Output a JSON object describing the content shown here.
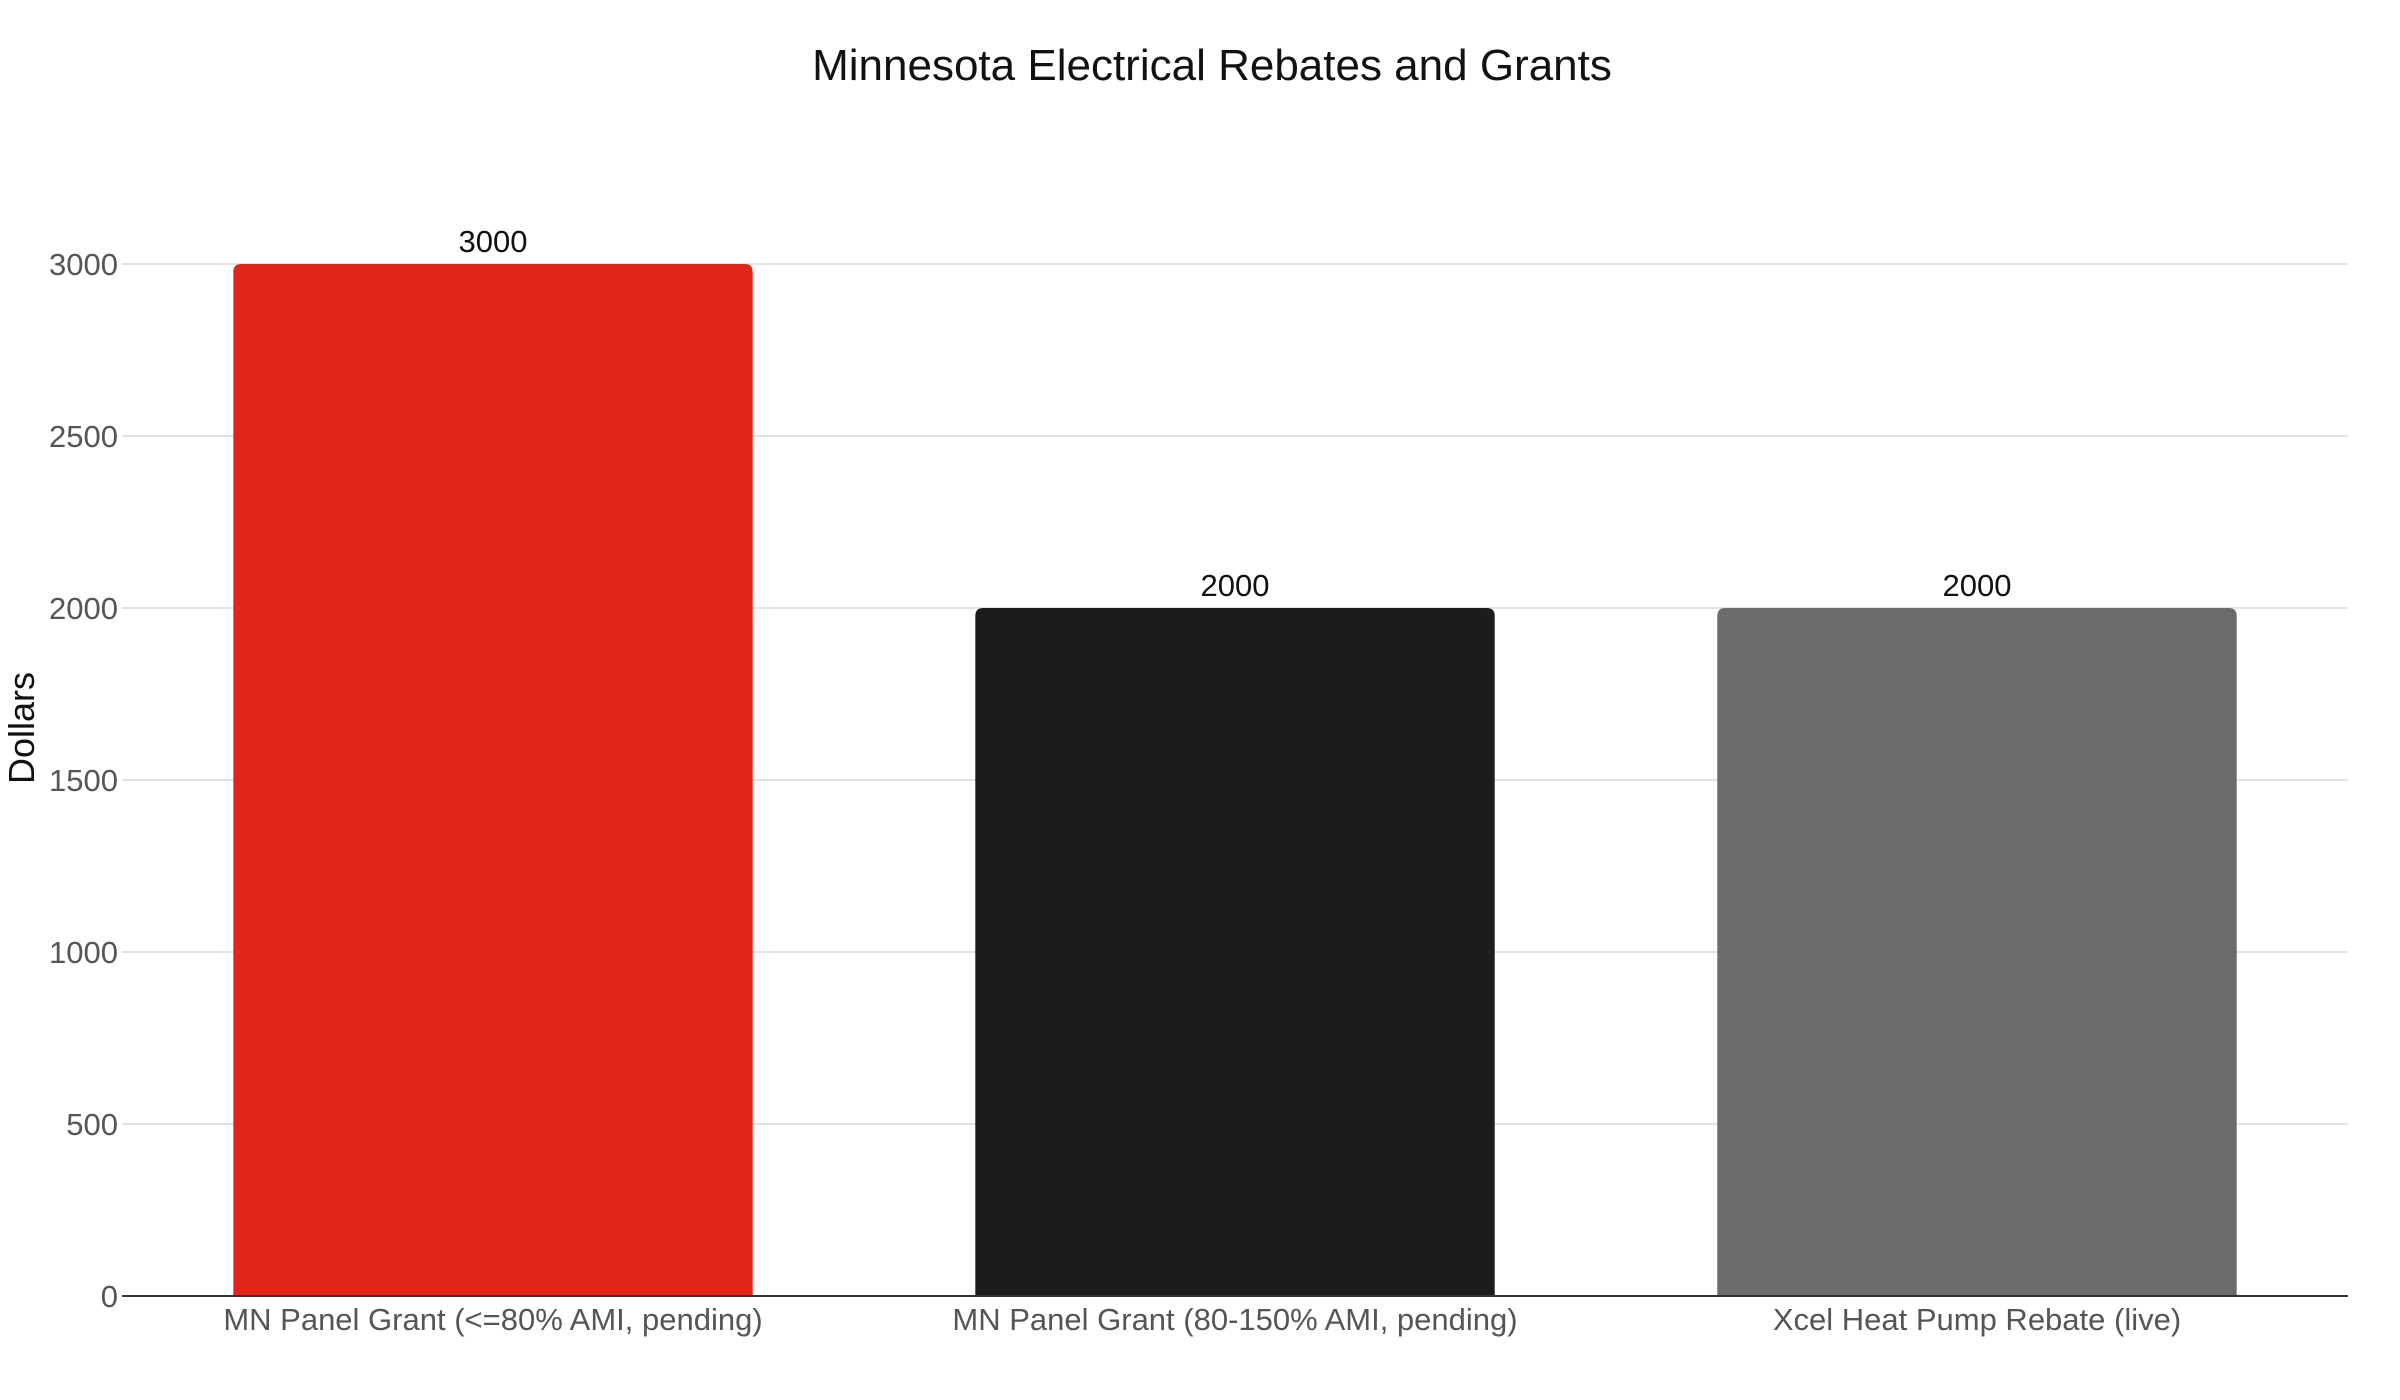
{
  "chart_data": {
    "type": "bar",
    "title": "Minnesota Electrical Rebates and Grants",
    "xlabel": "",
    "ylabel": "Dollars",
    "categories": [
      "MN Panel Grant (<=80% AMI, pending)",
      "MN Panel Grant (80-150% AMI, pending)",
      "Xcel Heat Pump Rebate (live)"
    ],
    "values": [
      3000,
      2000,
      2000
    ],
    "bar_colors": [
      "#e1251b",
      "#1c1c1c",
      "#6b6b6b"
    ],
    "ylim": [
      0,
      3000
    ],
    "yticks": [
      0,
      500,
      1000,
      1500,
      2000,
      2500,
      3000
    ],
    "grid": true,
    "legend": "none",
    "data_labels": true
  }
}
